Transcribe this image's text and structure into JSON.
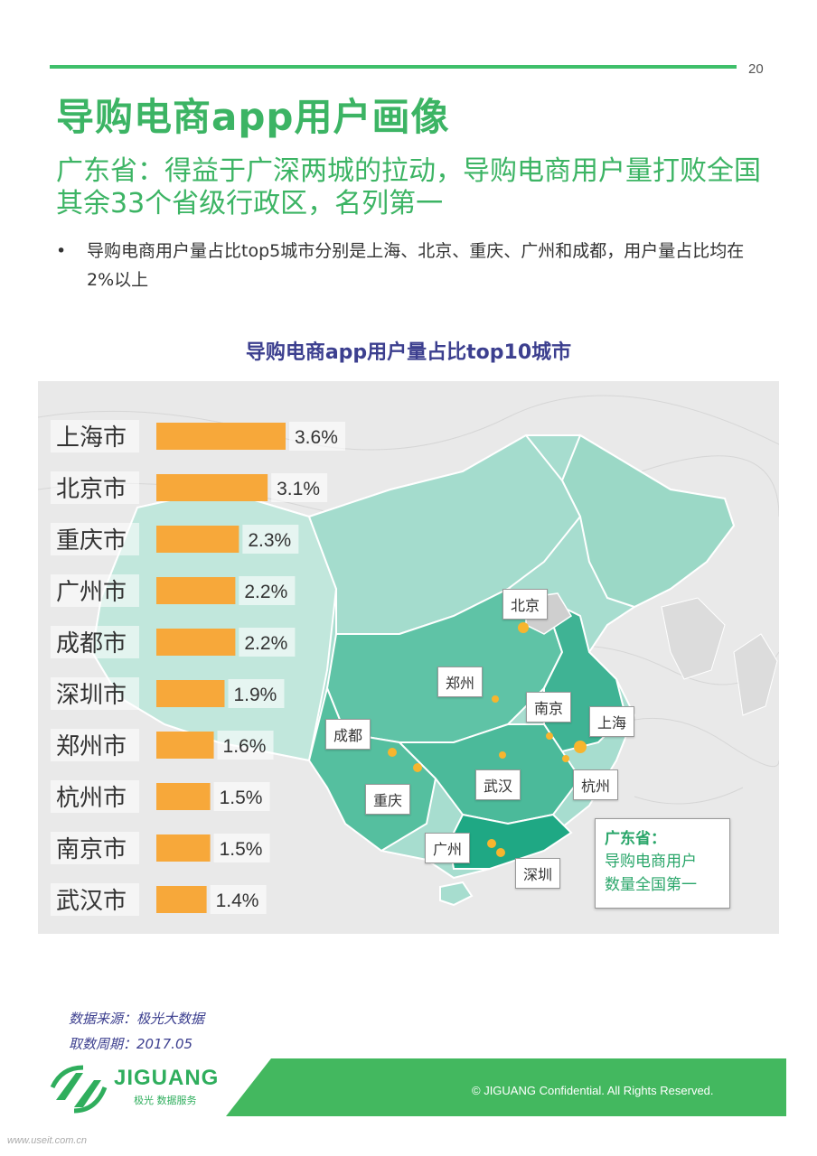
{
  "page_number": "20",
  "title": "导购电商app用户画像",
  "subtitle": "广东省：得益于广深两城的拉动，导购电商用户量打败全国其余33个省级行政区，名列第一",
  "bullet": "导购电商用户量占比top5城市分别是上海、北京、重庆、广州和成都，用户量占比均在2%以上",
  "bullet_symbol": "•",
  "colors": {
    "accent": "#3cb464",
    "bar": "#f7a83a",
    "chart_title": "#3c3f8f",
    "map_dark": "#2ea88a",
    "map_light": "#8fd6c4"
  },
  "chart_data": {
    "type": "bar",
    "orientation": "horizontal",
    "title": "导购电商app用户量占比top10城市",
    "categories": [
      "上海市",
      "北京市",
      "重庆市",
      "广州市",
      "成都市",
      "深圳市",
      "郑州市",
      "杭州市",
      "南京市",
      "武汉市"
    ],
    "values": [
      3.6,
      3.1,
      2.3,
      2.2,
      2.2,
      1.9,
      1.6,
      1.5,
      1.5,
      1.4
    ],
    "value_labels": [
      "3.6%",
      "3.1%",
      "2.3%",
      "2.2%",
      "2.2%",
      "1.9%",
      "1.6%",
      "1.5%",
      "1.5%",
      "1.4%"
    ],
    "unit": "%",
    "xlim": [
      0,
      3.6
    ],
    "grid": false
  },
  "map_labels": {
    "beijing": "北京",
    "zhengzhou": "郑州",
    "nanjing": "南京",
    "shanghai": "上海",
    "chengdu": "成都",
    "chongqing": "重庆",
    "wuhan": "武汉",
    "hangzhou": "杭州",
    "guangzhou": "广州",
    "shenzhen": "深圳"
  },
  "callout": {
    "title": "广东省：",
    "line1": "导购电商用户",
    "line2": "数量全国第一"
  },
  "source_line1": "数据来源：极光大数据",
  "source_line2": "取数周期：2017.05",
  "logo": {
    "name": "JIGUANG",
    "sub": "极光 数据服务"
  },
  "copyright": "© JIGUANG Confidential. All Rights Reserved.",
  "watermark": "www.useit.com.cn"
}
